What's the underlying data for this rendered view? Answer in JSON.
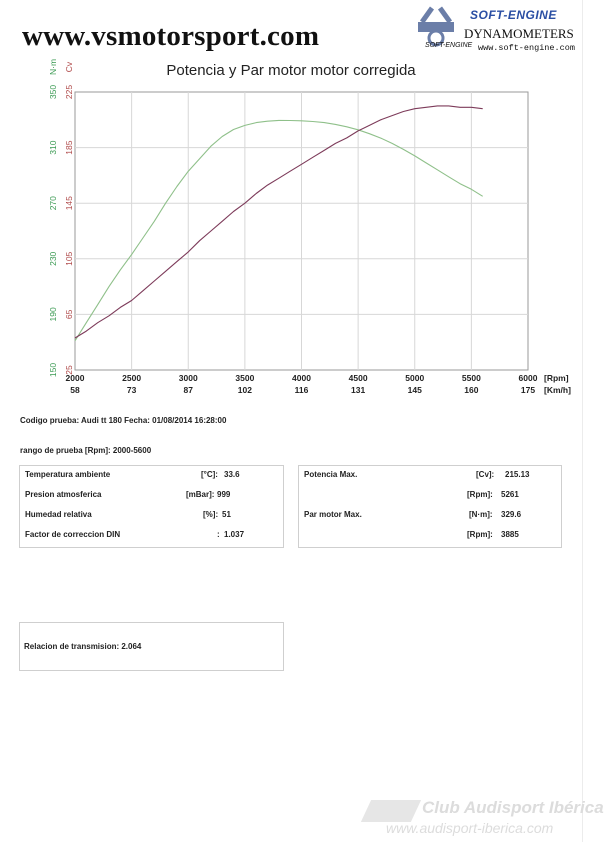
{
  "header": {
    "site": "www.vsmotorsport.com",
    "brand_name": "SOFT-ENGINE",
    "brand_tagline": "DYNAMOMETERS",
    "brand_sub": "SOFT-ENGINE",
    "brand_url": "www.soft-engine.com"
  },
  "chart_data": {
    "type": "line",
    "title": "Potencia y Par motor motor corregida",
    "left_axes": [
      {
        "unit": "N·m",
        "color": "#3a9a52",
        "ticks": [
          "150",
          "190",
          "230",
          "270",
          "310",
          "350"
        ]
      },
      {
        "unit": "Cv",
        "color": "#b04a4a",
        "ticks": [
          "25",
          "65",
          "105",
          "145",
          "185",
          "225"
        ]
      }
    ],
    "x_rpm": {
      "unit": "[Rpm]",
      "ticks": [
        "2000",
        "2500",
        "3000",
        "3500",
        "4000",
        "4500",
        "5000",
        "5500",
        "6000"
      ]
    },
    "x_kmh": {
      "unit": "[Km/h]",
      "ticks": [
        "58",
        "73",
        "87",
        "102",
        "116",
        "131",
        "145",
        "160",
        "175"
      ]
    },
    "xlim": [
      2000,
      6000
    ],
    "ylim_nm": [
      150,
      350
    ],
    "ylim_cv": [
      25,
      225
    ],
    "grid": true,
    "series": [
      {
        "name": "",
        "axis": "nm",
        "color": "#8fc08a",
        "x": [
          2000,
          2100,
          2200,
          2300,
          2400,
          2500,
          2600,
          2700,
          2800,
          2900,
          3000,
          3100,
          3200,
          3300,
          3400,
          3500,
          3600,
          3700,
          3800,
          3900,
          4000,
          4100,
          4200,
          4300,
          4400,
          4500,
          4600,
          4700,
          4800,
          4900,
          5000,
          5100,
          5200,
          5300,
          5400,
          5500,
          5600
        ],
        "y": [
          171,
          184,
          197,
          210,
          222,
          233,
          245,
          257,
          270,
          282,
          293,
          302,
          311,
          318,
          323,
          326,
          328,
          329,
          329.6,
          329.5,
          329.3,
          328.8,
          328,
          326.7,
          325,
          322.8,
          320,
          316.8,
          313,
          308.7,
          304,
          299,
          294,
          289,
          284,
          280,
          275
        ]
      },
      {
        "name": "",
        "axis": "cv",
        "color": "#7d3b5a",
        "x": [
          2000,
          2100,
          2200,
          2300,
          2400,
          2500,
          2600,
          2700,
          2800,
          2900,
          3000,
          3100,
          3200,
          3300,
          3400,
          3500,
          3600,
          3700,
          3800,
          3900,
          4000,
          4100,
          4200,
          4300,
          4400,
          4500,
          4600,
          4700,
          4800,
          4900,
          5000,
          5100,
          5200,
          5300,
          5400,
          5500,
          5600
        ],
        "y": [
          48,
          53,
          59,
          64,
          70,
          75,
          82,
          89,
          96,
          103,
          110,
          118,
          125,
          132,
          139,
          145,
          152,
          158,
          163,
          168,
          173,
          178,
          183,
          188,
          192,
          197,
          201,
          205,
          208,
          211,
          213,
          214,
          215,
          215,
          214,
          214,
          213
        ]
      }
    ]
  },
  "test_info": {
    "text": "Codigo prueba: Audi tt 180  Fecha: 01/08/2014 16:28:00",
    "range": "rango de prueba [Rpm]: 2000-5600"
  },
  "conditions": [
    {
      "label": "Temperatura ambiente",
      "unit": "[°C]:",
      "value": "33.6"
    },
    {
      "label": "Presion atmosferica",
      "unit": "[mBar]:",
      "value": "999"
    },
    {
      "label": "Humedad relativa",
      "unit": "[%]:",
      "value": "51"
    },
    {
      "label": "Factor de correccion DIN",
      "unit": ":",
      "value": "1.037"
    }
  ],
  "results": [
    {
      "label": "Potencia Max.",
      "unit": "[Cv]:",
      "value": "215.13"
    },
    {
      "label": "",
      "unit": "[Rpm]:",
      "value": "5261"
    },
    {
      "label": "Par motor Max.",
      "unit": "[N·m]:",
      "value": "329.6"
    },
    {
      "label": "",
      "unit": "[Rpm]:",
      "value": "3885"
    }
  ],
  "transmission": "Relacion de transmision: 2.064",
  "watermark": {
    "name": "Club Audisport Ibérica",
    "url": "www.audisport-iberica.com"
  }
}
